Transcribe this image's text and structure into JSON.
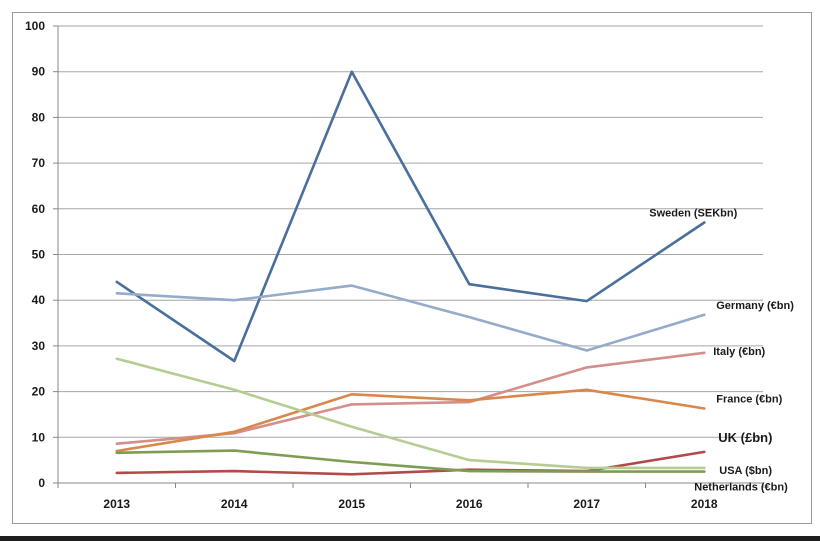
{
  "chart_data": {
    "type": "line",
    "title": "",
    "xlabel": "",
    "ylabel": "",
    "x": [
      "2013",
      "2014",
      "2015",
      "2016",
      "2017",
      "2018"
    ],
    "ylim": [
      0,
      100
    ],
    "yticks": [
      0,
      10,
      20,
      30,
      40,
      50,
      60,
      70,
      80,
      90,
      100
    ],
    "grid": true,
    "legend": "none",
    "series": [
      {
        "name": "Sweden (SEKbn)",
        "color": "#4a6f9c",
        "values": [
          44,
          26.7,
          90,
          43.5,
          39.8,
          57
        ]
      },
      {
        "name": "Germany (€bn)",
        "color": "#94abc9",
        "values": [
          41.5,
          40,
          43.2,
          36.3,
          29,
          36.8
        ]
      },
      {
        "name": "Italy (€bn)",
        "color": "#d28f8b",
        "values": [
          8.6,
          10.9,
          17.2,
          17.7,
          25.3,
          28.5
        ]
      },
      {
        "name": "France (€bn)",
        "color": "#d9884c",
        "values": [
          7,
          11.2,
          19.4,
          18.1,
          20.4,
          16.3
        ]
      },
      {
        "name": "UK (£bn)",
        "color": "#b34a48",
        "values": [
          2.2,
          2.6,
          1.9,
          2.9,
          2.6,
          6.8
        ]
      },
      {
        "name": "USA ($bn)",
        "color": "#b5cc93",
        "values": [
          27.2,
          20.4,
          12.3,
          5,
          3.3,
          3.3
        ]
      },
      {
        "name": "Netherlands (€bn)",
        "color": "#7f9d52",
        "values": [
          6.6,
          7.1,
          4.6,
          2.6,
          2.5,
          2.5
        ]
      }
    ]
  }
}
